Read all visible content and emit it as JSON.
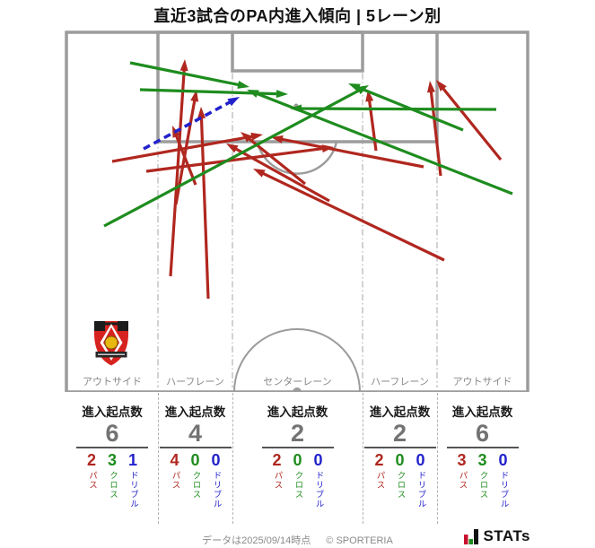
{
  "title": "直近3試合のPA内進入傾向 | 5レーン別",
  "pitch": {
    "lane_labels": [
      "アウトサイド",
      "ハーフレーン",
      "センターレーン",
      "ハーフレーン",
      "アウトサイド"
    ]
  },
  "colors": {
    "pass": "#b0271f",
    "cross": "#1e8c1e",
    "dribble": "#2222cc",
    "pitch_line": "#9c9c9c",
    "big_number": "#737373"
  },
  "chart_data": {
    "type": "scatter",
    "title": "直近3試合のPA内進入傾向 | 5レーン別",
    "description": "Arrow map of penalty-area entries on an attacking-half pitch (arrows run from origin to PA entry point, pixel coords of 663x611 image) plus per-lane totals",
    "legend": [
      {
        "name": "パス",
        "color": "#b0271f",
        "style": "solid"
      },
      {
        "name": "クロス",
        "color": "#1e8c1e",
        "style": "solid"
      },
      {
        "name": "ドリブル",
        "color": "#2222cc",
        "style": "dashed"
      }
    ],
    "arrows": [
      {
        "kind": "pass",
        "from": [
          125,
          180
        ],
        "to": [
          293,
          150
        ]
      },
      {
        "kind": "pass",
        "from": [
          163,
          191
        ],
        "to": [
          372,
          164
        ]
      },
      {
        "kind": "pass",
        "from": [
          190,
          308
        ],
        "to": [
          206,
          66
        ]
      },
      {
        "kind": "pass",
        "from": [
          196,
          228
        ],
        "to": [
          219,
          100
        ]
      },
      {
        "kind": "pass",
        "from": [
          232,
          333
        ],
        "to": [
          224,
          119
        ]
      },
      {
        "kind": "pass",
        "from": [
          218,
          206
        ],
        "to": [
          192,
          140
        ]
      },
      {
        "kind": "pass",
        "from": [
          340,
          205
        ],
        "to": [
          268,
          147
        ]
      },
      {
        "kind": "pass",
        "from": [
          367,
          224
        ],
        "to": [
          252,
          160
        ]
      },
      {
        "kind": "pass",
        "from": [
          419,
          168
        ],
        "to": [
          410,
          100
        ]
      },
      {
        "kind": "pass",
        "from": [
          472,
          186
        ],
        "to": [
          302,
          153
        ]
      },
      {
        "kind": "pass",
        "from": [
          491,
          196
        ],
        "to": [
          479,
          90
        ]
      },
      {
        "kind": "pass",
        "from": [
          558,
          178
        ],
        "to": [
          486,
          89
        ]
      },
      {
        "kind": "pass",
        "from": [
          495,
          290
        ],
        "to": [
          282,
          188
        ]
      },
      {
        "kind": "cross",
        "from": [
          145,
          70
        ],
        "to": [
          278,
          97
        ]
      },
      {
        "kind": "cross",
        "from": [
          156,
          100
        ],
        "to": [
          321,
          105
        ]
      },
      {
        "kind": "cross",
        "from": [
          116,
          252
        ],
        "to": [
          411,
          95
        ]
      },
      {
        "kind": "cross",
        "from": [
          553,
          122
        ],
        "to": [
          323,
          121
        ]
      },
      {
        "kind": "cross",
        "from": [
          516,
          145
        ],
        "to": [
          388,
          93
        ]
      },
      {
        "kind": "cross",
        "from": [
          571,
          216
        ],
        "to": [
          275,
          100
        ]
      },
      {
        "kind": "dribble",
        "from": [
          160,
          166
        ],
        "to": [
          267,
          108
        ]
      }
    ],
    "lanes": {
      "categories": [
        "アウトサイド",
        "ハーフレーン",
        "センターレーン",
        "ハーフレーン",
        "アウトサイド"
      ],
      "entry_origins": [
        6,
        4,
        2,
        2,
        6
      ],
      "series": [
        {
          "name": "パス",
          "values": [
            2,
            4,
            2,
            2,
            3
          ]
        },
        {
          "name": "クロス",
          "values": [
            3,
            0,
            0,
            0,
            3
          ]
        },
        {
          "name": "ドリブル",
          "values": [
            1,
            0,
            0,
            0,
            0
          ]
        }
      ]
    }
  },
  "stats": {
    "header": "進入起点数",
    "labels": {
      "pass": "パス",
      "cross": "クロス",
      "dribble": "ドリブル"
    },
    "columns": [
      {
        "lane": "アウトサイド",
        "total": "6",
        "pass": "2",
        "cross": "3",
        "dribble": "1"
      },
      {
        "lane": "ハーフレーン",
        "total": "4",
        "pass": "4",
        "cross": "0",
        "dribble": "0"
      },
      {
        "lane": "センターレーン",
        "total": "2",
        "pass": "2",
        "cross": "0",
        "dribble": "0"
      },
      {
        "lane": "ハーフレーン",
        "total": "2",
        "pass": "2",
        "cross": "0",
        "dribble": "0"
      },
      {
        "lane": "アウトサイド",
        "total": "6",
        "pass": "3",
        "cross": "3",
        "dribble": "0"
      }
    ]
  },
  "footer": {
    "note": "データは2025/09/14時点",
    "copyright": "© SPORTERIA",
    "brand": "STATs"
  }
}
